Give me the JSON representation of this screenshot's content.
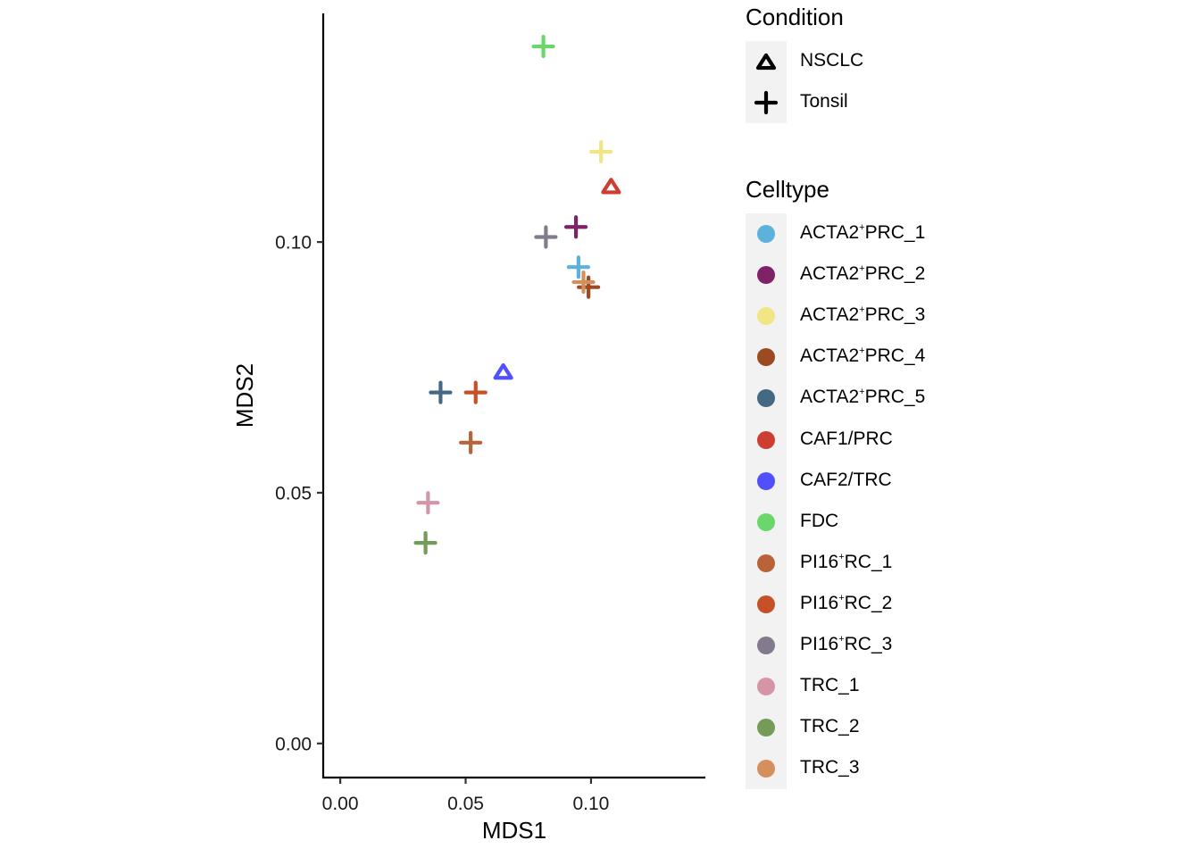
{
  "chart_data": {
    "type": "scatter",
    "title": "",
    "xlabel": "MDS1",
    "ylabel": "MDS2",
    "xlim": [
      -0.0068,
      0.1456
    ],
    "ylim": [
      -0.0068,
      0.1456
    ],
    "xticks": [
      {
        "value": 0.0,
        "label": "0.00"
      },
      {
        "value": 0.05,
        "label": "0.05"
      },
      {
        "value": 0.1,
        "label": "0.10"
      }
    ],
    "yticks": [
      {
        "value": 0.0,
        "label": "0.00"
      },
      {
        "value": 0.05,
        "label": "0.05"
      },
      {
        "value": 0.1,
        "label": "0.10"
      }
    ],
    "grid": false,
    "legend_placement": "right",
    "points": [
      {
        "celltype": "FDC",
        "condition": "Tonsil",
        "x": 0.081,
        "y": 0.139
      },
      {
        "celltype": "ACTA2+PRC_3",
        "condition": "Tonsil",
        "x": 0.104,
        "y": 0.118
      },
      {
        "celltype": "CAF1/PRC",
        "condition": "NSCLC",
        "x": 0.108,
        "y": 0.111
      },
      {
        "celltype": "ACTA2+PRC_2",
        "condition": "Tonsil",
        "x": 0.094,
        "y": 0.103
      },
      {
        "celltype": "PI16+RC_3",
        "condition": "Tonsil",
        "x": 0.082,
        "y": 0.101
      },
      {
        "celltype": "ACTA2+PRC_1",
        "condition": "Tonsil",
        "x": 0.095,
        "y": 0.095
      },
      {
        "celltype": "ACTA2+PRC_4",
        "condition": "Tonsil",
        "x": 0.099,
        "y": 0.091
      },
      {
        "celltype": "TRC_3",
        "condition": "Tonsil",
        "x": 0.097,
        "y": 0.092
      },
      {
        "celltype": "CAF2/TRC",
        "condition": "NSCLC",
        "x": 0.065,
        "y": 0.074
      },
      {
        "celltype": "ACTA2+PRC_5",
        "condition": "Tonsil",
        "x": 0.04,
        "y": 0.07
      },
      {
        "celltype": "PI16+RC_2",
        "condition": "Tonsil",
        "x": 0.054,
        "y": 0.07
      },
      {
        "celltype": "PI16+RC_1",
        "condition": "Tonsil",
        "x": 0.052,
        "y": 0.06
      },
      {
        "celltype": "TRC_1",
        "condition": "Tonsil",
        "x": 0.035,
        "y": 0.048
      },
      {
        "celltype": "TRC_2",
        "condition": "Tonsil",
        "x": 0.034,
        "y": 0.04
      }
    ],
    "legends": {
      "condition": {
        "title": "Condition",
        "entries": [
          {
            "label": "NSCLC",
            "shape": "triangle-open"
          },
          {
            "label": "Tonsil",
            "shape": "cross"
          }
        ]
      },
      "celltype": {
        "title": "Celltype",
        "entries": [
          {
            "key": "ACTA2+PRC_1",
            "base": "ACTA2",
            "sup": "+",
            "rest": "PRC_1",
            "color": "#5db1dd"
          },
          {
            "key": "ACTA2+PRC_2",
            "base": "ACTA2",
            "sup": "+",
            "rest": "PRC_2",
            "color": "#802268"
          },
          {
            "key": "ACTA2+PRC_3",
            "base": "ACTA2",
            "sup": "+",
            "rest": "PRC_3",
            "color": "#f0e685"
          },
          {
            "key": "ACTA2+PRC_4",
            "base": "ACTA2",
            "sup": "+",
            "rest": "PRC_4",
            "color": "#9c4a22"
          },
          {
            "key": "ACTA2+PRC_5",
            "base": "ACTA2",
            "sup": "+",
            "rest": "PRC_5",
            "color": "#466983"
          },
          {
            "key": "CAF1/PRC",
            "base": "CAF1/PRC",
            "sup": "",
            "rest": "",
            "color": "#ce3d32"
          },
          {
            "key": "CAF2/TRC",
            "base": "CAF2/TRC",
            "sup": "",
            "rest": "",
            "color": "#5050ff"
          },
          {
            "key": "FDC",
            "base": "FDC",
            "sup": "",
            "rest": "",
            "color": "#6bd76b"
          },
          {
            "key": "PI16+RC_1",
            "base": "PI16",
            "sup": "+",
            "rest": "RC_1",
            "color": "#ba6338"
          },
          {
            "key": "PI16+RC_2",
            "base": "PI16",
            "sup": "+",
            "rest": "RC_2",
            "color": "#c75127"
          },
          {
            "key": "PI16+RC_3",
            "base": "PI16",
            "sup": "+",
            "rest": "RC_3",
            "color": "#837b8d"
          },
          {
            "key": "TRC_1",
            "base": "TRC_1",
            "sup": "",
            "rest": "",
            "color": "#d595a7"
          },
          {
            "key": "TRC_2",
            "base": "TRC_2",
            "sup": "",
            "rest": "",
            "color": "#749b58"
          },
          {
            "key": "TRC_3",
            "base": "TRC_3",
            "sup": "",
            "rest": "",
            "color": "#d58f5c"
          }
        ]
      }
    }
  }
}
